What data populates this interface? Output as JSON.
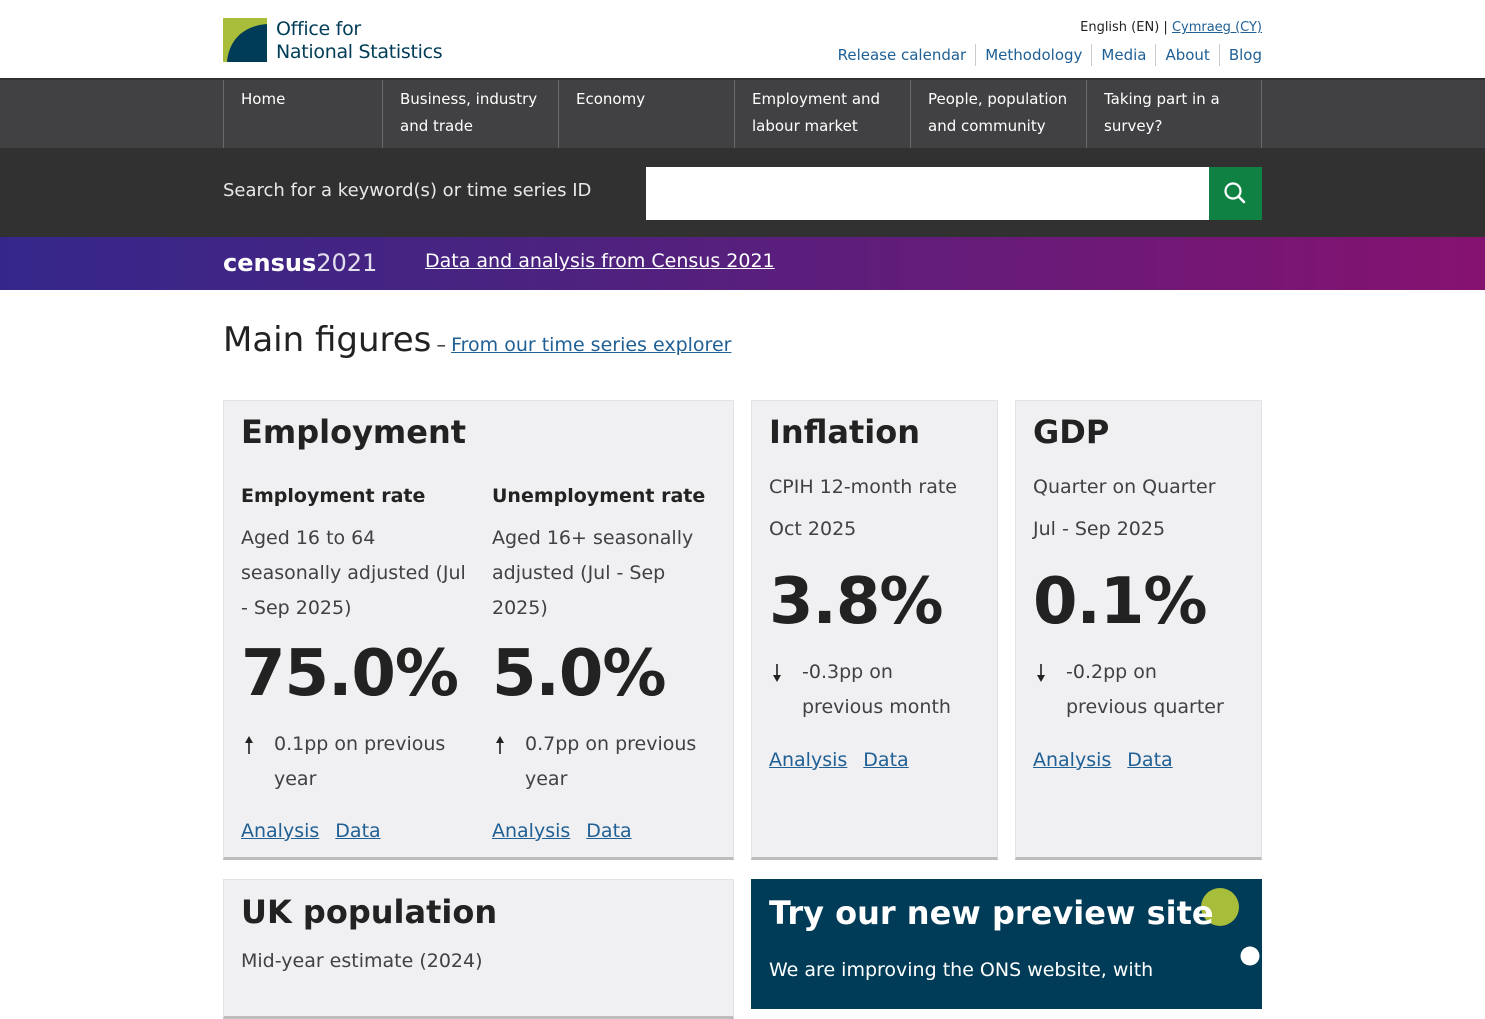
{
  "header": {
    "logo": {
      "line1": "Office for",
      "line2": "National Statistics"
    },
    "language": {
      "current": "English (EN)",
      "separator": "|",
      "other": "Cymraeg (CY)"
    },
    "links": [
      "Release calendar",
      "Methodology",
      "Media",
      "About",
      "Blog"
    ]
  },
  "nav": [
    "Home",
    "Business, industry and trade",
    "Economy",
    "Employment and labour market",
    "People, population and community",
    "Taking part in a survey?"
  ],
  "search": {
    "label": "Search for a keyword(s) or time series ID"
  },
  "census": {
    "logo_word": "census",
    "logo_year": "2021",
    "link": "Data and analysis from Census 2021"
  },
  "main": {
    "title": "Main figures",
    "dash": "–",
    "link": "From our time series explorer"
  },
  "cards": {
    "employment": {
      "title": "Employment",
      "columns": [
        {
          "heading": "Employment rate",
          "description": "Aged 16 to 64 seasonally adjusted (Jul - Sep 2025)",
          "value": "75.0%",
          "change": "0.1pp on previous year",
          "links": [
            "Analysis",
            "Data"
          ]
        },
        {
          "heading": "Unemployment rate",
          "description": "Aged 16+ seasonally adjusted (Jul - Sep 2025)",
          "value": "5.0%",
          "change": "0.7pp on previous year",
          "links": [
            "Analysis",
            "Data"
          ]
        }
      ]
    },
    "inflation": {
      "title": "Inflation",
      "subtitle": "CPIH 12-month rate",
      "period": "Oct 2025",
      "value": "3.8%",
      "change": "-0.3pp on previous month",
      "links": [
        "Analysis",
        "Data"
      ]
    },
    "gdp": {
      "title": "GDP",
      "subtitle": "Quarter on Quarter",
      "period": "Jul - Sep 2025",
      "value": "0.1%",
      "change": "-0.2pp on previous quarter",
      "links": [
        "Analysis",
        "Data"
      ]
    },
    "population": {
      "title": "UK population",
      "subtitle": "Mid-year estimate (2024)"
    },
    "preview": {
      "title": "Try our new preview site",
      "text": "We are improving the ONS website, with"
    }
  }
}
